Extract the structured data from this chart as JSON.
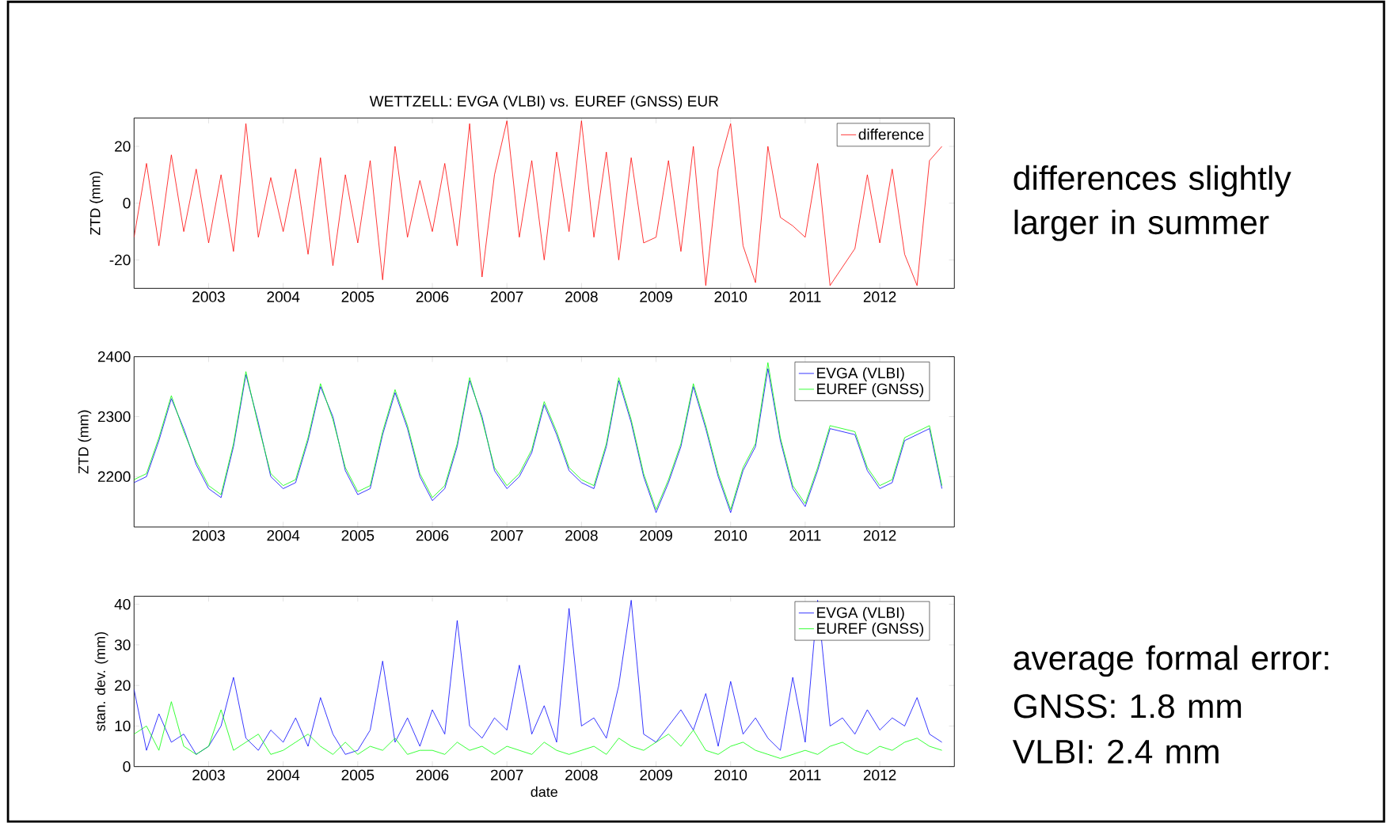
{
  "chart_data": [
    {
      "type": "line",
      "title": "WETTZELL: EVGA (VLBI) vs. EUREF (GNSS) EUR",
      "ylabel": "ZTD (mm)",
      "legend": "top right",
      "x": [
        "2002-01",
        "2002-03",
        "2002-05",
        "2002-07",
        "2002-09",
        "2002-11",
        "2003-01",
        "2003-03",
        "2003-05",
        "2003-07",
        "2003-09",
        "2003-11",
        "2004-01",
        "2004-03",
        "2004-05",
        "2004-07",
        "2004-09",
        "2004-11",
        "2005-01",
        "2005-03",
        "2005-05",
        "2005-07",
        "2005-09",
        "2005-11",
        "2006-01",
        "2006-03",
        "2006-05",
        "2006-07",
        "2006-09",
        "2006-11",
        "2007-01",
        "2007-03",
        "2007-05",
        "2007-07",
        "2007-09",
        "2007-11",
        "2008-01",
        "2008-03",
        "2008-05",
        "2008-07",
        "2008-09",
        "2008-11",
        "2009-01",
        "2009-03",
        "2009-05",
        "2009-07",
        "2009-09",
        "2009-11",
        "2010-01",
        "2010-03",
        "2010-05",
        "2010-07",
        "2010-09",
        "2010-11",
        "2011-01",
        "2011-03",
        "2011-05",
        "2011-07",
        "2011-09",
        "2011-11",
        "2012-01",
        "2012-03",
        "2012-05",
        "2012-07",
        "2012-09",
        "2012-11"
      ],
      "xlim": [
        "2002-01",
        "2013-01"
      ],
      "xticks": [
        "2003",
        "2004",
        "2005",
        "2006",
        "2007",
        "2008",
        "2009",
        "2010",
        "2011",
        "2012"
      ],
      "ylim": [
        -30,
        30
      ],
      "yticks": [
        -20,
        0,
        20
      ],
      "series": [
        {
          "name": "difference",
          "color": "#ff0000",
          "values": [
            -12,
            14,
            -15,
            17,
            -10,
            12,
            -14,
            10,
            -17,
            28,
            -12,
            9,
            -10,
            12,
            -18,
            16,
            -22,
            10,
            -14,
            15,
            -27,
            20,
            -12,
            8,
            -10,
            14,
            -15,
            28,
            -26,
            10,
            29,
            -12,
            15,
            -20,
            18,
            -10,
            29,
            -12,
            18,
            -20,
            16,
            -14,
            -12,
            15,
            -17,
            20,
            -29,
            12,
            28,
            -15,
            -28,
            20,
            -5,
            -8,
            -12,
            14,
            -29,
            null,
            -16,
            10,
            -14,
            12,
            -18,
            -29,
            15,
            20
          ]
        }
      ],
      "annotations": [
        "differences slightly larger in summer"
      ]
    },
    {
      "type": "line",
      "ylabel": "ZTD (mm)",
      "legend": "top right",
      "x": [
        "2002-01",
        "2002-03",
        "2002-05",
        "2002-07",
        "2002-09",
        "2002-11",
        "2003-01",
        "2003-03",
        "2003-05",
        "2003-07",
        "2003-09",
        "2003-11",
        "2004-01",
        "2004-03",
        "2004-05",
        "2004-07",
        "2004-09",
        "2004-11",
        "2005-01",
        "2005-03",
        "2005-05",
        "2005-07",
        "2005-09",
        "2005-11",
        "2006-01",
        "2006-03",
        "2006-05",
        "2006-07",
        "2006-09",
        "2006-11",
        "2007-01",
        "2007-03",
        "2007-05",
        "2007-07",
        "2007-09",
        "2007-11",
        "2008-01",
        "2008-03",
        "2008-05",
        "2008-07",
        "2008-09",
        "2008-11",
        "2009-01",
        "2009-03",
        "2009-05",
        "2009-07",
        "2009-09",
        "2009-11",
        "2010-01",
        "2010-03",
        "2010-05",
        "2010-07",
        "2010-09",
        "2010-11",
        "2011-01",
        "2011-03",
        "2011-05",
        "2011-07",
        "2011-09",
        "2011-11",
        "2012-01",
        "2012-03",
        "2012-05",
        "2012-07",
        "2012-09",
        "2012-11"
      ],
      "xlim": [
        "2002-01",
        "2013-01"
      ],
      "xticks": [
        "2003",
        "2004",
        "2005",
        "2006",
        "2007",
        "2008",
        "2009",
        "2010",
        "2011",
        "2012"
      ],
      "ylim": [
        2116,
        2400
      ],
      "yticks": [
        2200,
        2300,
        2400
      ],
      "series": [
        {
          "name": "EVGA (VLBI)",
          "color": "#0000ff",
          "values": [
            2190,
            2200,
            2260,
            2330,
            2280,
            2220,
            2180,
            2165,
            2250,
            2370,
            2290,
            2200,
            2180,
            2190,
            2260,
            2350,
            2300,
            2210,
            2170,
            2180,
            2270,
            2340,
            2280,
            2200,
            2160,
            2180,
            2250,
            2360,
            2300,
            2210,
            2180,
            2200,
            2240,
            2320,
            2270,
            2210,
            2190,
            2180,
            2250,
            2360,
            2290,
            2200,
            2140,
            2190,
            2250,
            2350,
            2280,
            2200,
            2140,
            2210,
            2250,
            2380,
            2260,
            2180,
            2150,
            2210,
            2280,
            null,
            2270,
            2210,
            2180,
            2190,
            2260,
            null,
            2280,
            2180
          ]
        },
        {
          "name": "EUREF (GNSS)",
          "color": "#00ff00",
          "values": [
            2195,
            2205,
            2265,
            2335,
            2275,
            2225,
            2185,
            2170,
            2255,
            2375,
            2285,
            2205,
            2185,
            2195,
            2265,
            2355,
            2295,
            2215,
            2175,
            2185,
            2275,
            2345,
            2285,
            2205,
            2165,
            2185,
            2255,
            2365,
            2295,
            2215,
            2185,
            2205,
            2245,
            2325,
            2275,
            2215,
            2195,
            2185,
            2255,
            2365,
            2295,
            2205,
            2145,
            2195,
            2255,
            2355,
            2285,
            2205,
            2145,
            2215,
            2255,
            2390,
            2265,
            2185,
            2155,
            2215,
            2285,
            null,
            2275,
            2215,
            2185,
            2195,
            2265,
            null,
            2285,
            2185
          ]
        }
      ]
    },
    {
      "type": "line",
      "ylabel": "stan. dev. (mm)",
      "xlabel": "date",
      "legend": "top right",
      "x": [
        "2002-01",
        "2002-03",
        "2002-05",
        "2002-07",
        "2002-09",
        "2002-11",
        "2003-01",
        "2003-03",
        "2003-05",
        "2003-07",
        "2003-09",
        "2003-11",
        "2004-01",
        "2004-03",
        "2004-05",
        "2004-07",
        "2004-09",
        "2004-11",
        "2005-01",
        "2005-03",
        "2005-05",
        "2005-07",
        "2005-09",
        "2005-11",
        "2006-01",
        "2006-03",
        "2006-05",
        "2006-07",
        "2006-09",
        "2006-11",
        "2007-01",
        "2007-03",
        "2007-05",
        "2007-07",
        "2007-09",
        "2007-11",
        "2008-01",
        "2008-03",
        "2008-05",
        "2008-07",
        "2008-09",
        "2008-11",
        "2009-01",
        "2009-03",
        "2009-05",
        "2009-07",
        "2009-09",
        "2009-11",
        "2010-01",
        "2010-03",
        "2010-05",
        "2010-07",
        "2010-09",
        "2010-11",
        "2011-01",
        "2011-03",
        "2011-05",
        "2011-07",
        "2011-09",
        "2011-11",
        "2012-01",
        "2012-03",
        "2012-05",
        "2012-07",
        "2012-09",
        "2012-11"
      ],
      "xlim": [
        "2002-01",
        "2013-01"
      ],
      "xticks": [
        "2003",
        "2004",
        "2005",
        "2006",
        "2007",
        "2008",
        "2009",
        "2010",
        "2011",
        "2012"
      ],
      "ylim": [
        0,
        42
      ],
      "yticks": [
        0,
        10,
        20,
        30,
        40
      ],
      "series": [
        {
          "name": "EVGA (VLBI)",
          "color": "#0000ff",
          "values": [
            19,
            4,
            13,
            6,
            8,
            3,
            5,
            10,
            22,
            7,
            4,
            9,
            6,
            12,
            5,
            17,
            8,
            3,
            4,
            9,
            26,
            6,
            12,
            5,
            14,
            8,
            36,
            10,
            7,
            12,
            9,
            25,
            8,
            15,
            6,
            39,
            10,
            12,
            7,
            20,
            41,
            8,
            6,
            10,
            14,
            9,
            18,
            5,
            21,
            8,
            12,
            7,
            4,
            22,
            6,
            41,
            10,
            12,
            8,
            14,
            9,
            12,
            10,
            17,
            8,
            6
          ]
        },
        {
          "name": "EUREF (GNSS)",
          "color": "#00ff00",
          "values": [
            8,
            10,
            4,
            16,
            5,
            3,
            5,
            14,
            4,
            6,
            8,
            3,
            4,
            6,
            8,
            5,
            3,
            6,
            3,
            5,
            4,
            7,
            3,
            4,
            4,
            3,
            6,
            4,
            5,
            3,
            5,
            4,
            3,
            6,
            4,
            3,
            4,
            5,
            3,
            7,
            5,
            4,
            6,
            8,
            5,
            9,
            4,
            3,
            5,
            6,
            4,
            3,
            2,
            3,
            4,
            3,
            5,
            6,
            4,
            3,
            5,
            4,
            6,
            7,
            5,
            4
          ]
        }
      ],
      "annotations": [
        "average formal error:",
        "GNSS: 1.8 mm",
        "VLBI: 2.4 mm"
      ]
    }
  ]
}
